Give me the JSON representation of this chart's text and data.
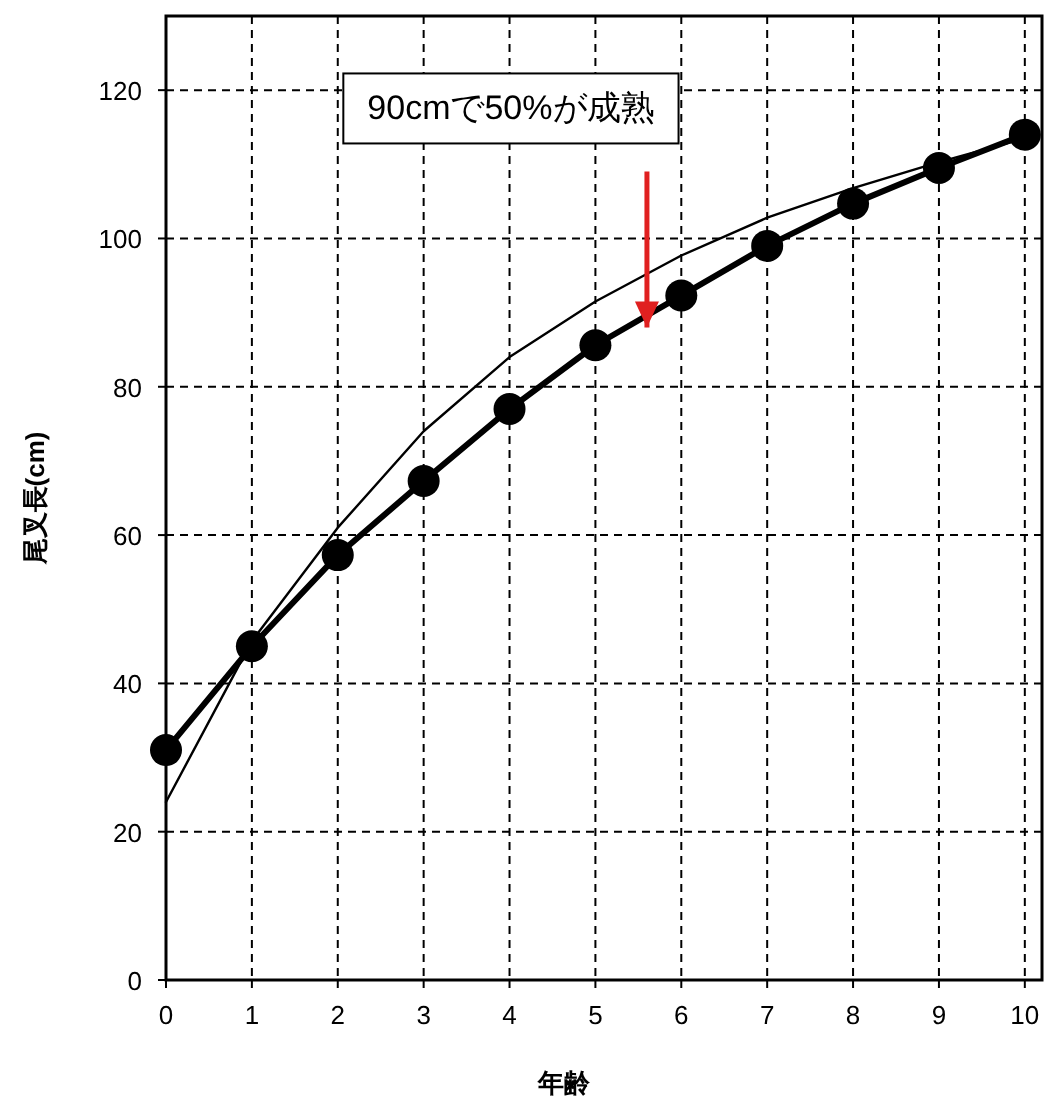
{
  "chart_data": {
    "type": "line",
    "xlabel": "年齢",
    "ylabel": "尾叉長(cm)",
    "x": [
      0,
      1,
      2,
      3,
      4,
      5,
      6,
      7,
      8,
      9,
      10
    ],
    "series": [
      {
        "color": "#000000",
        "marker": "circle",
        "values": [
          31,
          45,
          57.3,
          67.3,
          77,
          85.6,
          92.3,
          99,
          104.7,
          109.5,
          114
        ]
      },
      {
        "color": "#000000",
        "marker": "none",
        "values": [
          24,
          45.7,
          61,
          74,
          84,
          91.5,
          97.7,
          102.8,
          106.8,
          110.3,
          113.5
        ]
      }
    ],
    "xlim": [
      0,
      10.2
    ],
    "ylim": [
      0,
      130
    ],
    "xticks": [
      0,
      1,
      2,
      3,
      4,
      5,
      6,
      7,
      8,
      9,
      10
    ],
    "yticks": [
      0,
      20,
      40,
      60,
      80,
      100,
      120
    ],
    "grid": true,
    "line_style": "solid",
    "annotations": [
      {
        "text": "90cmで50%が成熟",
        "x": 5.6,
        "y": 88
      }
    ]
  }
}
